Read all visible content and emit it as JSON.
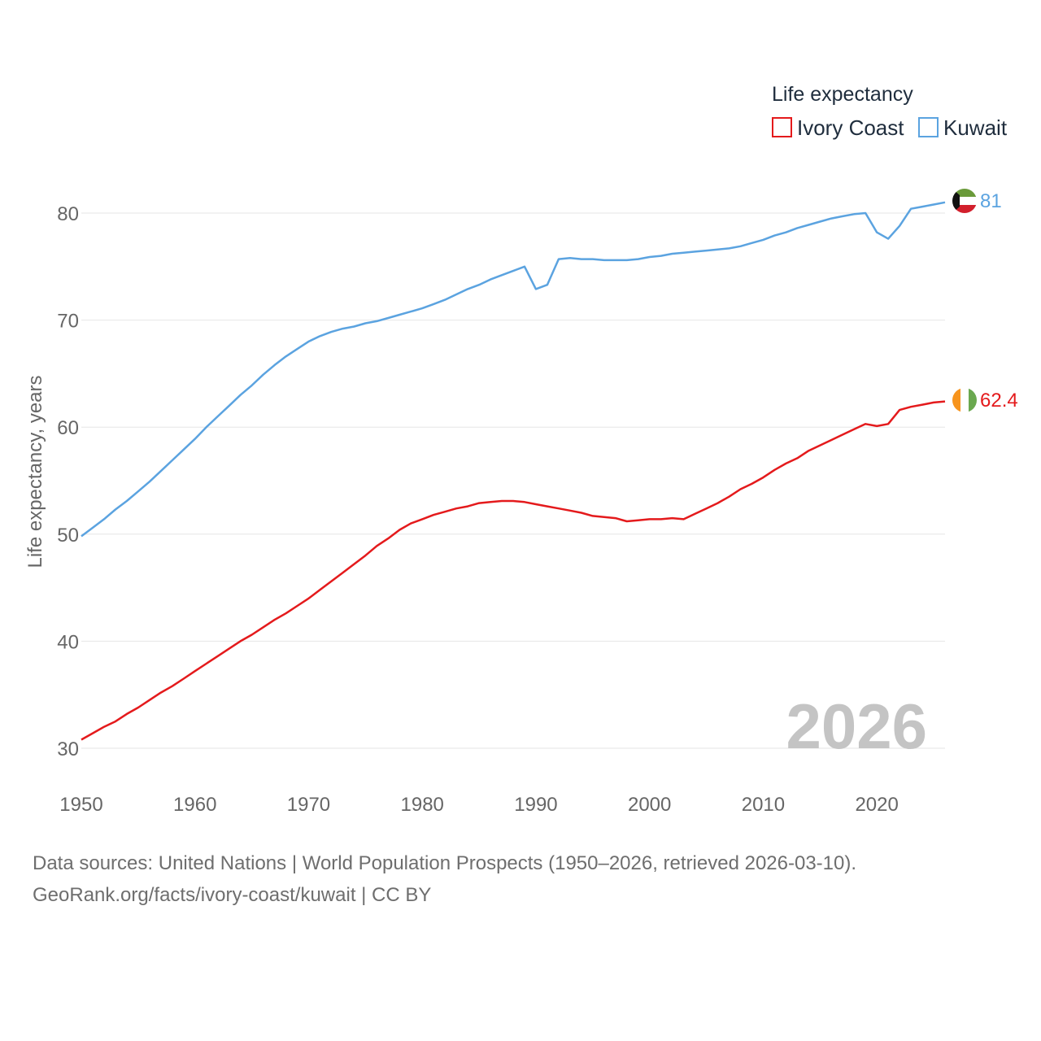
{
  "chart_data": {
    "type": "line",
    "title": "",
    "legend_title": "Life expectancy",
    "xlabel": "",
    "ylabel": "Life expectancy, years",
    "xlim": [
      1950,
      2026
    ],
    "ylim": [
      30,
      82
    ],
    "x_ticks": [
      1950,
      1960,
      1970,
      1980,
      1990,
      2000,
      2010,
      2020
    ],
    "y_ticks": [
      30,
      40,
      50,
      60,
      70,
      80
    ],
    "year_label": "2026",
    "legend_position": "top-right",
    "grid": true,
    "series": [
      {
        "name": "Ivory Coast",
        "color": "#e41a1c",
        "end_label": "62.4",
        "flag": "ivory-coast-flag",
        "x": [
          1950,
          1951,
          1952,
          1953,
          1954,
          1955,
          1956,
          1957,
          1958,
          1959,
          1960,
          1961,
          1962,
          1963,
          1964,
          1965,
          1966,
          1967,
          1968,
          1969,
          1970,
          1971,
          1972,
          1973,
          1974,
          1975,
          1976,
          1977,
          1978,
          1979,
          1980,
          1981,
          1982,
          1983,
          1984,
          1985,
          1986,
          1987,
          1988,
          1989,
          1990,
          1991,
          1992,
          1993,
          1994,
          1995,
          1996,
          1997,
          1998,
          1999,
          2000,
          2001,
          2002,
          2003,
          2004,
          2005,
          2006,
          2007,
          2008,
          2009,
          2010,
          2011,
          2012,
          2013,
          2014,
          2015,
          2016,
          2017,
          2018,
          2019,
          2020,
          2021,
          2022,
          2023,
          2024,
          2025,
          2026
        ],
        "values": [
          30.8,
          31.4,
          32.0,
          32.5,
          33.2,
          33.8,
          34.5,
          35.2,
          35.8,
          36.5,
          37.2,
          37.9,
          38.6,
          39.3,
          40.0,
          40.6,
          41.3,
          42.0,
          42.6,
          43.3,
          44.0,
          44.8,
          45.6,
          46.4,
          47.2,
          48.0,
          48.9,
          49.6,
          50.4,
          51.0,
          51.4,
          51.8,
          52.1,
          52.4,
          52.6,
          52.9,
          53.0,
          53.1,
          53.1,
          53.0,
          52.8,
          52.6,
          52.4,
          52.2,
          52.0,
          51.7,
          51.6,
          51.5,
          51.2,
          51.3,
          51.4,
          51.4,
          51.5,
          51.4,
          51.9,
          52.4,
          52.9,
          53.5,
          54.2,
          54.7,
          55.3,
          56.0,
          56.6,
          57.1,
          57.8,
          58.3,
          58.8,
          59.3,
          59.8,
          60.3,
          60.1,
          60.3,
          61.6,
          61.9,
          62.1,
          62.3,
          62.4
        ]
      },
      {
        "name": "Kuwait",
        "color": "#5ba3e0",
        "end_label": "81",
        "flag": "kuwait-flag",
        "x": [
          1950,
          1951,
          1952,
          1953,
          1954,
          1955,
          1956,
          1957,
          1958,
          1959,
          1960,
          1961,
          1962,
          1963,
          1964,
          1965,
          1966,
          1967,
          1968,
          1969,
          1970,
          1971,
          1972,
          1973,
          1974,
          1975,
          1976,
          1977,
          1978,
          1979,
          1980,
          1981,
          1982,
          1983,
          1984,
          1985,
          1986,
          1987,
          1988,
          1989,
          1990,
          1991,
          1992,
          1993,
          1994,
          1995,
          1996,
          1997,
          1998,
          1999,
          2000,
          2001,
          2002,
          2003,
          2004,
          2005,
          2006,
          2007,
          2008,
          2009,
          2010,
          2011,
          2012,
          2013,
          2014,
          2015,
          2016,
          2017,
          2018,
          2019,
          2020,
          2021,
          2022,
          2023,
          2024,
          2025,
          2026
        ],
        "values": [
          49.8,
          50.6,
          51.4,
          52.3,
          53.1,
          54.0,
          54.9,
          55.9,
          56.9,
          57.9,
          58.9,
          60.0,
          61.0,
          62.0,
          63.0,
          63.9,
          64.9,
          65.8,
          66.6,
          67.3,
          68.0,
          68.5,
          68.9,
          69.2,
          69.4,
          69.7,
          69.9,
          70.2,
          70.5,
          70.8,
          71.1,
          71.5,
          71.9,
          72.4,
          72.9,
          73.3,
          73.8,
          74.2,
          74.6,
          75.0,
          72.9,
          73.3,
          75.7,
          75.8,
          75.7,
          75.7,
          75.6,
          75.6,
          75.6,
          75.7,
          75.9,
          76.0,
          76.2,
          76.3,
          76.4,
          76.5,
          76.6,
          76.7,
          76.9,
          77.2,
          77.5,
          77.9,
          78.2,
          78.6,
          78.9,
          79.2,
          79.5,
          79.7,
          79.9,
          80.0,
          78.2,
          77.6,
          78.8,
          80.4,
          80.6,
          80.8,
          81.0
        ]
      }
    ],
    "source_line1": "Data sources: United Nations | World Population Prospects (1950–2026, retrieved 2026-03-10).",
    "source_line2": "GeoRank.org/facts/ivory-coast/kuwait | CC BY"
  }
}
